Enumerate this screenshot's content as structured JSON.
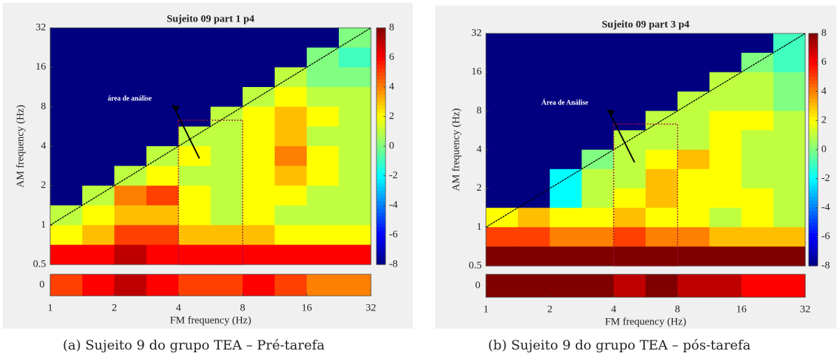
{
  "chart_data": [
    {
      "type": "heatmap",
      "title": "Sujeito 09 part 1 p4",
      "xlabel": "FM frequency (Hz)",
      "ylabel": "AM frequency (Hz)",
      "caption": "(a) Sujeito 9 do grupo TEA – Pré-tarefa",
      "annotation": "área de análise",
      "xscale": "log",
      "yscale": "log",
      "xlim": [
        1,
        32
      ],
      "ylim": [
        0.5,
        32
      ],
      "xticks": [
        1,
        2,
        4,
        8,
        16,
        32
      ],
      "yticks": [
        0.5,
        1,
        2,
        4,
        8,
        16,
        32
      ],
      "clim": [
        -8,
        8
      ],
      "cticks": [
        -8,
        -6,
        -4,
        -2,
        0,
        2,
        4,
        6,
        8
      ],
      "colormap": "jet",
      "z": [
        [
          -8,
          -8,
          -8,
          -8,
          -8,
          -8,
          -8,
          -8,
          -8,
          0
        ],
        [
          -8,
          -8,
          -8,
          -8,
          -8,
          -8,
          -8,
          -8,
          0,
          -1
        ],
        [
          -8,
          -8,
          -8,
          -8,
          -8,
          -8,
          -8,
          1,
          0,
          0
        ],
        [
          -8,
          -8,
          -8,
          -8,
          -8,
          -8,
          1,
          2,
          1,
          1
        ],
        [
          -8,
          -8,
          -8,
          -8,
          -8,
          1,
          2,
          3,
          2,
          1
        ],
        [
          -8,
          -8,
          -8,
          -8,
          1,
          1,
          2,
          3,
          1,
          1
        ],
        [
          -8,
          -8,
          -8,
          1,
          2,
          1,
          2,
          4,
          2,
          1
        ],
        [
          -8,
          -8,
          1,
          2,
          1,
          1,
          2,
          3,
          2,
          1
        ],
        [
          -8,
          1,
          4,
          5,
          2,
          1,
          2,
          2,
          1,
          1
        ],
        [
          1,
          2,
          3,
          3,
          2,
          1,
          2,
          1,
          1,
          1
        ],
        [
          2,
          3,
          5,
          5,
          3,
          3,
          3,
          2,
          2,
          2
        ],
        [
          6,
          6,
          7,
          6,
          6,
          6,
          6,
          6,
          6,
          6
        ]
      ],
      "strip_yticks": [
        0
      ],
      "strip": [
        5,
        6,
        7,
        6,
        5,
        5,
        6,
        5,
        4,
        4
      ]
    },
    {
      "type": "heatmap",
      "title": "Sujeito 09 part 3 p4",
      "xlabel": "FM frequency (Hz)",
      "ylabel": "AM frequency (Hz)",
      "caption": "(b) Sujeito 9 do grupo TEA – pós-tarefa",
      "annotation": "Área de Análise",
      "xscale": "log",
      "yscale": "log",
      "xlim": [
        1,
        32
      ],
      "ylim": [
        0.5,
        32
      ],
      "xticks": [
        1,
        2,
        4,
        8,
        16,
        32
      ],
      "yticks": [
        0.5,
        1,
        2,
        4,
        8,
        16,
        32
      ],
      "clim": [
        -8,
        8
      ],
      "cticks": [
        -8,
        -6,
        -4,
        -2,
        0,
        2,
        4,
        6,
        8
      ],
      "colormap": "jet",
      "z": [
        [
          -8,
          -8,
          -8,
          -8,
          -8,
          -8,
          -8,
          -8,
          -8,
          -1
        ],
        [
          -8,
          -8,
          -8,
          -8,
          -8,
          -8,
          -8,
          -8,
          0,
          -1
        ],
        [
          -8,
          -8,
          -8,
          -8,
          -8,
          -8,
          -8,
          1,
          1,
          0
        ],
        [
          -8,
          -8,
          -8,
          -8,
          -8,
          -8,
          1,
          1,
          1,
          0
        ],
        [
          -8,
          -8,
          -8,
          -8,
          -8,
          1,
          1,
          2,
          2,
          1
        ],
        [
          -8,
          -8,
          -8,
          -8,
          1,
          1,
          1,
          2,
          1,
          1
        ],
        [
          -8,
          -8,
          -8,
          0,
          1,
          2,
          3,
          2,
          1,
          1
        ],
        [
          -8,
          -8,
          -2,
          1,
          1,
          3,
          2,
          2,
          1,
          1
        ],
        [
          -8,
          -8,
          -2,
          1,
          2,
          3,
          2,
          2,
          2,
          1
        ],
        [
          2,
          3,
          2,
          2,
          3,
          2,
          2,
          1,
          2,
          1
        ],
        [
          5,
          5,
          4,
          4,
          5,
          4,
          4,
          3,
          3,
          3
        ],
        [
          8,
          8,
          8,
          8,
          8,
          8,
          8,
          8,
          8,
          8
        ]
      ],
      "strip_yticks": [
        0
      ],
      "strip": [
        8,
        8,
        8,
        8,
        7,
        8,
        7,
        7,
        6,
        6
      ]
    }
  ]
}
